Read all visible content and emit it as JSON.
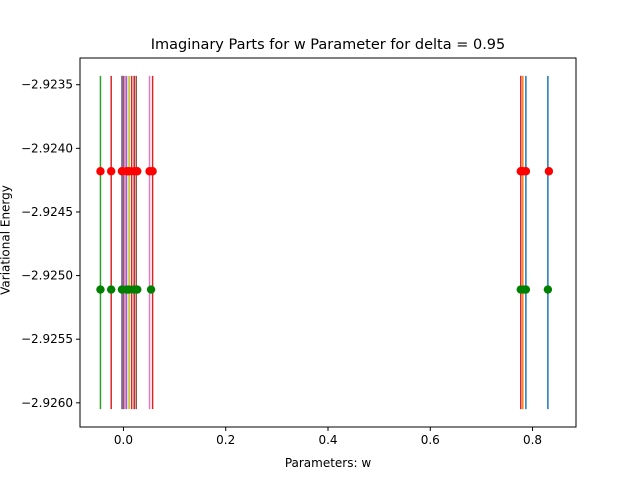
{
  "chart_data": {
    "type": "scatter",
    "title": "Imaginary Parts for w Parameter for delta = 0.95",
    "xlabel": "Parameters: w",
    "ylabel": "Variational Energy",
    "xlim": [
      -0.085,
      0.885
    ],
    "ylim": [
      -2.92619,
      -2.92329
    ],
    "x_ticks": [
      0.0,
      0.2,
      0.4,
      0.6,
      0.8
    ],
    "x_tick_labels": [
      "0.0",
      "0.2",
      "0.4",
      "0.6",
      "0.8"
    ],
    "y_ticks": [
      -2.926,
      -2.9255,
      -2.925,
      -2.9245,
      -2.924,
      -2.9235
    ],
    "y_tick_labels": [
      "−2.9260",
      "−2.9255",
      "−2.9250",
      "−2.9245",
      "−2.9240",
      "−2.9235"
    ],
    "grid": false,
    "legend": "none",
    "series": [
      {
        "color": "#1f77b4",
        "x": 0.83,
        "ymin": -2.92605,
        "ymax": -2.92343
      },
      {
        "color": "#ff7f0e",
        "x": 0.777,
        "ymin": -2.92605,
        "ymax": -2.92343
      },
      {
        "color": "#2ca02c",
        "x": -0.045,
        "ymin": -2.92605,
        "ymax": -2.92343
      },
      {
        "color": "#d62728",
        "x": -0.024,
        "ymin": -2.92605,
        "ymax": -2.92343
      },
      {
        "color": "#9467bd",
        "x": 0.006,
        "ymin": -2.92605,
        "ymax": -2.92343
      },
      {
        "color": "#8c564b",
        "x": 0.025,
        "ymin": -2.92605,
        "ymax": -2.92343
      },
      {
        "color": "#e377c2",
        "x": 0.051,
        "ymin": -2.92605,
        "ymax": -2.92343
      },
      {
        "color": "#7f7f7f",
        "x": 0.0,
        "ymin": -2.92605,
        "ymax": -2.92343
      },
      {
        "color": "#bcbd22",
        "x": 0.011,
        "ymin": -2.92605,
        "ymax": -2.92343
      },
      {
        "color": "#17becf",
        "x": -0.003,
        "ymin": -2.92605,
        "ymax": -2.92343
      },
      {
        "color": "#1f77b4",
        "x": 0.787,
        "ymin": -2.92605,
        "ymax": -2.92343
      },
      {
        "color": "#ff7f0e",
        "x": 0.781,
        "ymin": -2.92605,
        "ymax": -2.92343
      },
      {
        "color": "#2ca02c",
        "x": 0.021,
        "ymin": -2.92605,
        "ymax": -2.92343
      },
      {
        "color": "#d62728",
        "x": 0.016,
        "ymin": -2.92605,
        "ymax": -2.92343
      },
      {
        "color": "#8c564b",
        "x": -0.001,
        "ymin": -2.92605,
        "ymax": -2.92343
      },
      {
        "color": "#d62728",
        "x": 0.057,
        "ymin": -2.92605,
        "ymax": -2.92343
      },
      {
        "color": "#d62728",
        "x": 0.021,
        "ymin": -2.92605,
        "ymax": -2.92343
      },
      {
        "color": "#d62728",
        "x": 0.777,
        "ymin": -2.92605,
        "ymax": -2.92343
      },
      {
        "color": "#9467bd",
        "x": -0.003,
        "ymin": -2.92605,
        "ymax": -2.92343
      },
      {
        "color": "#e377c2",
        "x": 0.003,
        "ymin": -2.92605,
        "ymax": -2.92343
      }
    ],
    "markers": [
      {
        "name": "red",
        "color": "#ff0000",
        "y": -2.92418,
        "x": [
          -0.045,
          -0.024,
          -0.003,
          0.006,
          0.011,
          0.021,
          0.027,
          0.051,
          0.057,
          0.777,
          0.781,
          0.787,
          0.832
        ]
      },
      {
        "name": "green",
        "color": "#008000",
        "y": -2.92511,
        "x": [
          -0.045,
          -0.024,
          -0.003,
          0.006,
          0.011,
          0.021,
          0.027,
          0.054,
          0.777,
          0.783,
          0.787,
          0.83
        ]
      }
    ]
  }
}
